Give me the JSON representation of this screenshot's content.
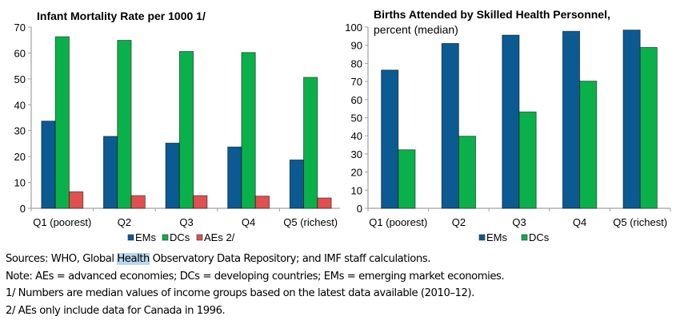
{
  "chart_data": [
    {
      "type": "bar",
      "title": "Infant Mortality Rate per 1000 1/",
      "subtitle": "",
      "xlabel": "",
      "ylabel": "",
      "ylim": [
        0,
        70
      ],
      "yticks": [
        0,
        10,
        20,
        30,
        40,
        50,
        60,
        70
      ],
      "categories": [
        "Q1 (poorest)",
        "Q2",
        "Q3",
        "Q4",
        "Q5 (richest)"
      ],
      "series": [
        {
          "name": "EMs",
          "color": "#0b5a92",
          "values": [
            33.7,
            27.8,
            25.2,
            23.7,
            18.7
          ]
        },
        {
          "name": "DCs",
          "color": "#0ab14a",
          "values": [
            66.3,
            64.9,
            60.6,
            60.2,
            50.6
          ]
        },
        {
          "name": "AEs 2/",
          "color": "#e05050",
          "values": [
            6.4,
            4.9,
            4.9,
            4.7,
            4.0
          ]
        }
      ],
      "legend": "bottom-center",
      "grid": false
    },
    {
      "type": "bar",
      "title": "Births Attended by Skilled Health Personnel,",
      "subtitle": "percent (median)",
      "xlabel": "",
      "ylabel": "",
      "ylim": [
        0,
        100
      ],
      "yticks": [
        0,
        10,
        20,
        30,
        40,
        50,
        60,
        70,
        80,
        90,
        100
      ],
      "categories": [
        "Q1 (poorest)",
        "Q2",
        "Q3",
        "Q4",
        "Q5 (richest)"
      ],
      "series": [
        {
          "name": "EMs",
          "color": "#0b5a92",
          "values": [
            76.3,
            91.0,
            95.6,
            97.7,
            98.4
          ]
        },
        {
          "name": "DCs",
          "color": "#0ab14a",
          "values": [
            32.3,
            39.8,
            53.2,
            70.2,
            88.8
          ]
        }
      ],
      "legend": "bottom-center",
      "grid": false
    }
  ],
  "notes": {
    "sources_prefix": "Sources: WHO, Global ",
    "sources_highlight": "Health",
    "sources_suffix": " Observatory Data Repository; and IMF staff calculations.",
    "note": "Note: AEs = advanced economies; DCs = developing countries; EMs = emerging market economies.",
    "footnote1": "1/ Numbers are median values of income groups based on the latest data available (2010–12).",
    "footnote2": "2/ AEs only include data for Canada in 1996."
  }
}
